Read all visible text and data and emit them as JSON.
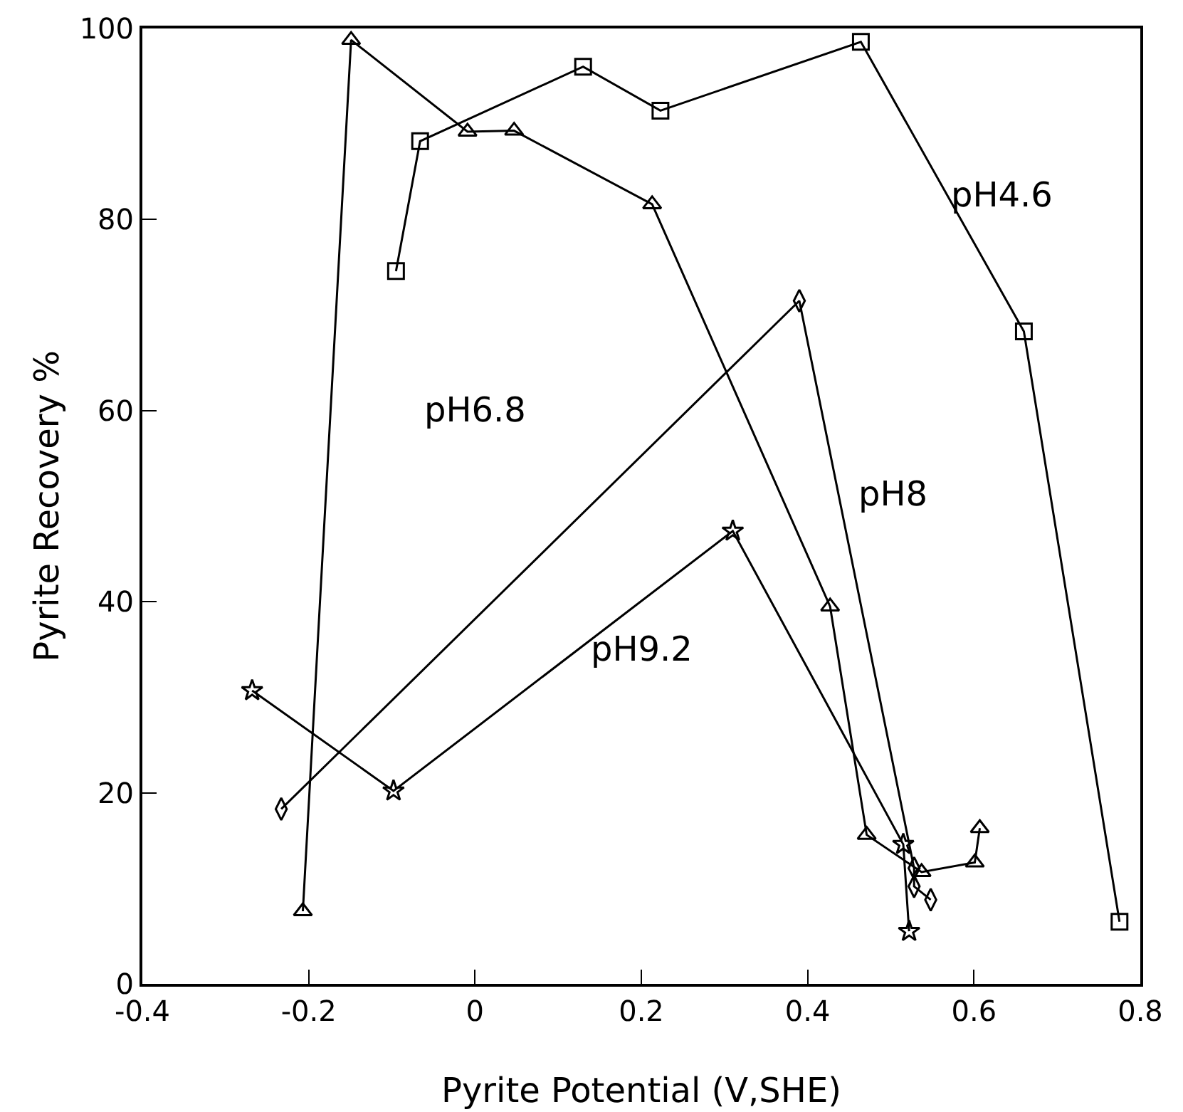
{
  "chart_data": {
    "type": "line",
    "xlabel": "Pyrite Potential (V,SHE)",
    "ylabel": "Pyrite Recovery %",
    "xlim": [
      -0.4,
      0.8
    ],
    "xticks": [
      -0.4,
      -0.2,
      0.0,
      0.2,
      0.4,
      0.6,
      0.8
    ],
    "ylim": [
      0,
      100
    ],
    "yticks": [
      0,
      20,
      40,
      60,
      80,
      100
    ],
    "grid": false,
    "line_style": "solid",
    "series": [
      {
        "color": "#000000",
        "marker": "square",
        "x": [
          -0.095,
          -0.066,
          0.13,
          0.223,
          0.464,
          0.66,
          0.775
        ],
        "values": [
          74.6,
          88.2,
          96,
          91.4,
          98.6,
          68.3,
          6.5
        ]
      },
      {
        "color": "#000000",
        "marker": "triangle",
        "x": [
          -0.207,
          -0.149,
          -0.009,
          0.047,
          0.213,
          0.427,
          0.471,
          0.537,
          0.601,
          0.607
        ],
        "values": [
          7.6,
          98.8,
          89.2,
          89.3,
          81.6,
          39.5,
          15.6,
          11.7,
          12.7,
          16.3
        ]
      },
      {
        "color": "#000000",
        "marker": "diamond",
        "x": [
          -0.233,
          0.39,
          0.528,
          0.528,
          0.548
        ],
        "values": [
          18.3,
          71.5,
          12.1,
          10.2,
          8.8
        ]
      },
      {
        "color": "#000000",
        "marker": "star",
        "x": [
          -0.268,
          -0.098,
          0.31,
          0.515,
          0.522
        ],
        "values": [
          30.7,
          20.2,
          47.4,
          14.6,
          5.5
        ]
      }
    ],
    "annotations": [
      "pH4.6",
      "pH6.8",
      "pH8",
      "pH9.2"
    ]
  }
}
